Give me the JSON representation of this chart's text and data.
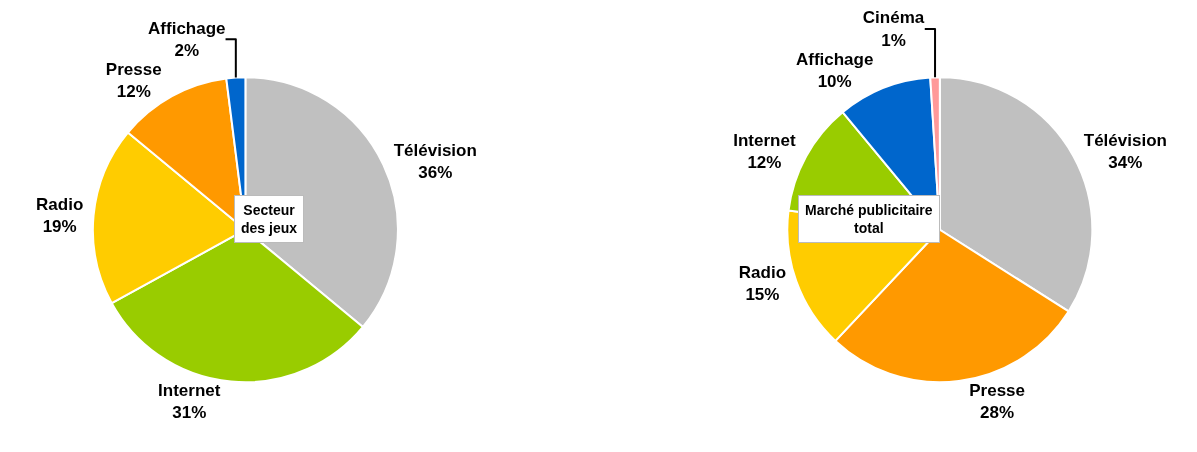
{
  "chart_data": [
    {
      "type": "pie",
      "categories": [
        "Télévision",
        "Internet",
        "Radio",
        "Presse",
        "Affichage"
      ],
      "values": [
        36,
        31,
        19,
        12,
        2
      ],
      "value_labels": [
        "36%",
        "31%",
        "19%",
        "12%",
        "2%"
      ],
      "colors": [
        "#c0c0c0",
        "#99cc00",
        "#ffcc00",
        "#ff9900",
        "#0066cc"
      ],
      "annotations": [
        "Secteur\ndes jeux"
      ]
    },
    {
      "type": "pie",
      "categories": [
        "Télévision",
        "Presse",
        "Radio",
        "Internet",
        "Affichage",
        "Cinéma"
      ],
      "values": [
        34,
        28,
        15,
        12,
        10,
        1
      ],
      "value_labels": [
        "34%",
        "28%",
        "15%",
        "12%",
        "10%",
        "1%"
      ],
      "colors": [
        "#c0c0c0",
        "#ff9900",
        "#ffcc00",
        "#99cc00",
        "#0066cc",
        "#ff9999"
      ],
      "annotations": [
        "Marché publicitaire\ntotal"
      ]
    }
  ]
}
